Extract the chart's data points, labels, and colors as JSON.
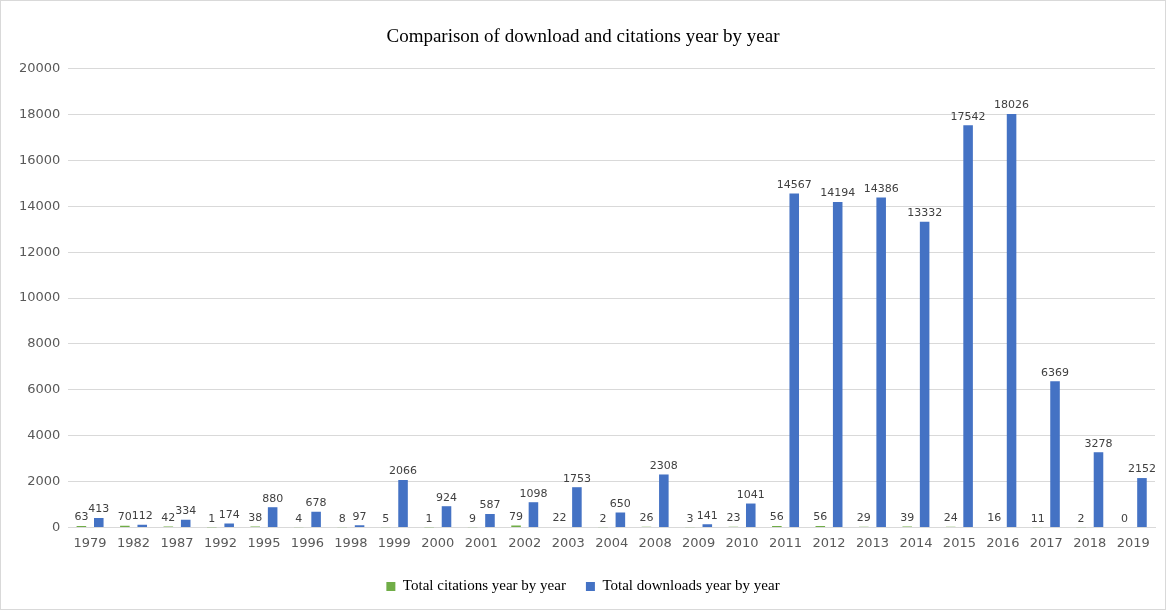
{
  "chart_data": {
    "type": "bar",
    "title": "Comparison of download and citations year by year",
    "categories": [
      "1979",
      "1982",
      "1987",
      "1992",
      "1995",
      "1996",
      "1998",
      "1999",
      "2000",
      "2001",
      "2002",
      "2003",
      "2004",
      "2008",
      "2009",
      "2010",
      "2011",
      "2012",
      "2013",
      "2014",
      "2015",
      "2016",
      "2017",
      "2018",
      "2019"
    ],
    "series": [
      {
        "name": "Total citations year by year",
        "color": "#70ad47",
        "values": [
          63,
          70,
          42,
          1,
          38,
          4,
          8,
          5,
          1,
          9,
          79,
          22,
          2,
          26,
          3,
          23,
          56,
          56,
          29,
          39,
          24,
          16,
          11,
          2,
          0
        ]
      },
      {
        "name": "Total downloads year by year",
        "color": "#4472c4",
        "values": [
          413,
          112,
          334,
          174,
          880,
          678,
          97,
          2066,
          924,
          587,
          1098,
          1753,
          650,
          2308,
          141,
          1041,
          14567,
          14194,
          14386,
          13332,
          17542,
          18026,
          6369,
          3278,
          2152
        ]
      }
    ],
    "ylim": [
      0,
      20000
    ],
    "yticks": [
      0,
      2000,
      4000,
      6000,
      8000,
      10000,
      12000,
      14000,
      16000,
      18000,
      20000
    ],
    "grid": "y",
    "legend": "bottom",
    "data_labels": true
  }
}
